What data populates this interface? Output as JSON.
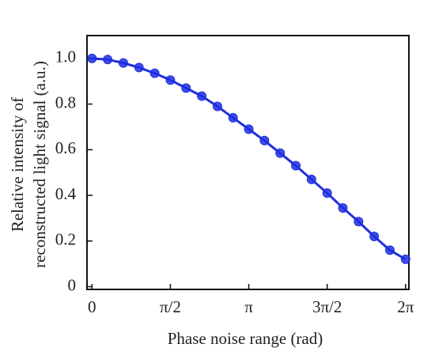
{
  "chart_data": {
    "type": "line",
    "xlabel": "Phase noise range (rad)",
    "ylabel": [
      "Relative intensity of",
      "reconstructed light signal (a.u.)"
    ],
    "x": [
      0,
      0.3142,
      0.6283,
      0.9425,
      1.2566,
      1.5708,
      1.885,
      2.1991,
      2.5133,
      2.8274,
      3.1416,
      3.4558,
      3.7699,
      4.0841,
      4.3982,
      4.7124,
      5.0265,
      5.3407,
      5.6549,
      5.969,
      6.2832
    ],
    "series": [
      {
        "name": "Relative intensity",
        "color": "#1f2fe0",
        "values": [
          1.0,
          0.995,
          0.98,
          0.96,
          0.935,
          0.905,
          0.87,
          0.835,
          0.79,
          0.74,
          0.69,
          0.64,
          0.585,
          0.53,
          0.47,
          0.41,
          0.345,
          0.285,
          0.22,
          0.16,
          0.12
        ]
      }
    ],
    "xlim": [
      -0.1,
      6.35
    ],
    "xticks": [
      0,
      {
        "value": 1.5708,
        "label": "π/2"
      },
      {
        "value": 3.1416,
        "label": "π"
      },
      {
        "value": 4.7124,
        "label": "3π/2"
      },
      {
        "value": 6.2832,
        "label": "2π"
      }
    ],
    "ylim": [
      -0.012,
      1.1
    ],
    "yticks": [
      0,
      0.2,
      0.4,
      0.6,
      0.8,
      {
        "value": 1,
        "label": "1.0"
      }
    ],
    "grid": false
  }
}
